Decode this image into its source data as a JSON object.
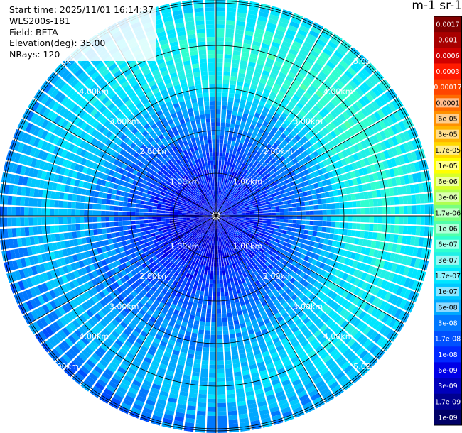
{
  "header": {
    "start_time": "Start time: 2025/11/01 16:14:37",
    "instrument": "WLS200s-181",
    "field": "Field: BETA",
    "elevation": "Elevation(deg): 35.00",
    "nrays": "NRays: 120"
  },
  "colorbar": {
    "unit_title": "m-1 sr-1",
    "labels": [
      "0.0017",
      "0.001",
      "0.0006",
      "0.0003",
      "0.00017",
      "0.0001",
      "6e-05",
      "3e-05",
      "1.7e-05",
      "1e-05",
      "6e-06",
      "3e-06",
      "1.7e-06",
      "1e-06",
      "6e-07",
      "3e-07",
      "1.7e-07",
      "1e-07",
      "6e-08",
      "3e-08",
      "1.7e-08",
      "1e-08",
      "6e-09",
      "3e-09",
      "1.7e-09",
      "1e-09"
    ],
    "colors": [
      "#800000",
      "#a80000",
      "#d00000",
      "#ff1a00",
      "#ff4500",
      "#ff6a00",
      "#ff9000",
      "#ffb400",
      "#ffd800",
      "#ffff00",
      "#d8ff28",
      "#b0ff50",
      "#78ff80",
      "#50ffaa",
      "#30ffd0",
      "#22f0e6",
      "#00e6ff",
      "#00c8ff",
      "#00a8ff",
      "#0078ff",
      "#0050ff",
      "#0028ff",
      "#0000e6",
      "#0000bb",
      "#000090",
      "#000066"
    ]
  },
  "chart_data": {
    "type": "heatmap",
    "subtype": "polar PPI scan",
    "field": "BETA",
    "elevation_deg": 35.0,
    "n_rays": 120,
    "range_rings_km": [
      1.0,
      2.0,
      3.0,
      4.0,
      5.0
    ],
    "ring_labels": [
      "1.00km",
      "2.00km",
      "3.00km",
      "4.00km",
      "5.00km"
    ],
    "spoke_interval_deg": 30,
    "color_scale": "log",
    "value_range": [
      1e-09,
      0.0017
    ],
    "dominant_values_by_range_km": [
      {
        "range_km": [
          0.0,
          1.5
        ],
        "beta": "3e-09 to 6e-09"
      },
      {
        "range_km": [
          1.5,
          3.0
        ],
        "beta": "1.7e-08 to 3e-08"
      },
      {
        "range_km": [
          3.0,
          4.5
        ],
        "beta": "1e-07 to 1.7e-07"
      },
      {
        "range_km": [
          4.5,
          6.0
        ],
        "beta": "3e-08 to 1e-07"
      }
    ]
  }
}
